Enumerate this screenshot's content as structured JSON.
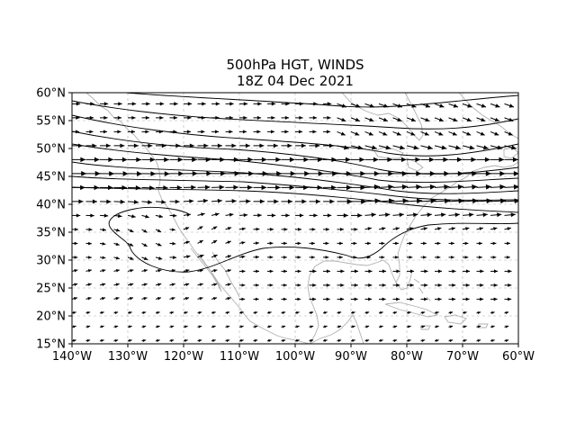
{
  "title": {
    "line1": "500hPa HGT, WINDS",
    "line2": "18Z 04 Dec 2021"
  },
  "map": {
    "extent": {
      "lon_min": -140,
      "lon_max": -60,
      "lat_min": 15,
      "lat_max": 60
    },
    "grid": true,
    "x_ticks": [
      {
        "lon": -140,
        "label": "140°W"
      },
      {
        "lon": -130,
        "label": "130°W"
      },
      {
        "lon": -120,
        "label": "120°W"
      },
      {
        "lon": -110,
        "label": "110°W"
      },
      {
        "lon": -100,
        "label": "100°W"
      },
      {
        "lon": -90,
        "label": "90°W"
      },
      {
        "lon": -80,
        "label": "80°W"
      },
      {
        "lon": -70,
        "label": "70°W"
      },
      {
        "lon": -60,
        "label": "60°W"
      }
    ],
    "y_ticks": [
      {
        "lat": 60,
        "label": "60°N"
      },
      {
        "lat": 55,
        "label": "55°N"
      },
      {
        "lat": 50,
        "label": "50°N"
      },
      {
        "lat": 45,
        "label": "45°N"
      },
      {
        "lat": 40,
        "label": "40°N"
      },
      {
        "lat": 35,
        "label": "35°N"
      },
      {
        "lat": 30,
        "label": "30°N"
      },
      {
        "lat": 25,
        "label": "25°N"
      },
      {
        "lat": 20,
        "label": "20°N"
      },
      {
        "lat": 15,
        "label": "15°N"
      }
    ],
    "colors": {
      "coast": "#b0b0b0",
      "contour": "#000000",
      "grid": "#b0b0b0",
      "arrow": "#000000"
    }
  }
}
